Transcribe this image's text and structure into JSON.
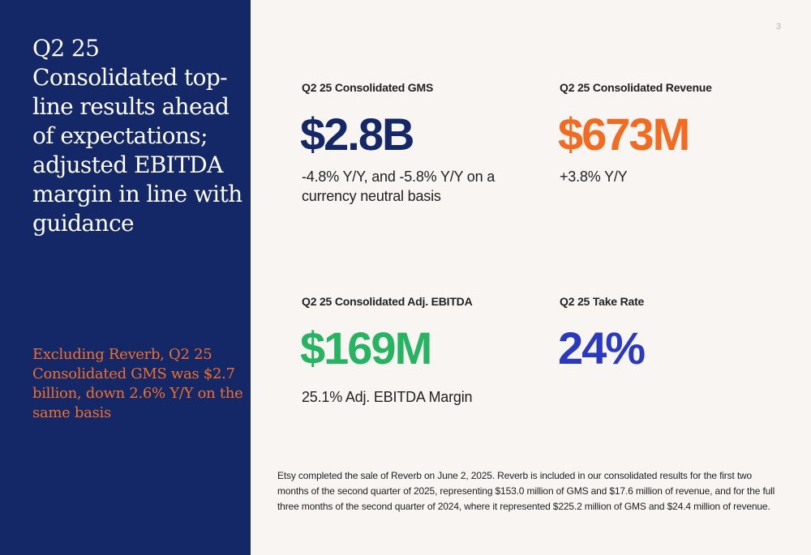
{
  "sidebar": {
    "headline": "Q2 25 Consolidated top-line results ahead of expectations; adjusted EBITDA margin in line with guidance",
    "note": "Excluding Reverb, Q2 25 Consolidated GMS was $2.7 billion, down 2.6% Y/Y on the same basis"
  },
  "page_number": "3",
  "metrics": [
    {
      "label": "Q2 25 Consolidated GMS",
      "value": "$2.8B",
      "description": "-4.8% Y/Y, and -5.8% Y/Y on a currency neutral basis",
      "color": "#142867"
    },
    {
      "label": "Q2 25 Consolidated Revenue",
      "value": "$673M",
      "description": "+3.8% Y/Y",
      "color": "#f26b21"
    },
    {
      "label": "Q2 25 Consolidated Adj. EBITDA",
      "value": "$169M",
      "description": "25.1% Adj. EBITDA Margin",
      "color": "#27b462"
    },
    {
      "label": "Q2 25 Take Rate",
      "value": "24%",
      "description": "",
      "color": "#2a3ac0"
    }
  ],
  "footnote": "Etsy completed the sale of Reverb on June 2, 2025. Reverb is included in our consolidated results for the first two months of the second quarter of 2025, representing $153.0 million of GMS and $17.6 million of revenue, and for the full three months of the second quarter of 2024, where it represented $225.2 million of GMS and $24.4 million of revenue."
}
